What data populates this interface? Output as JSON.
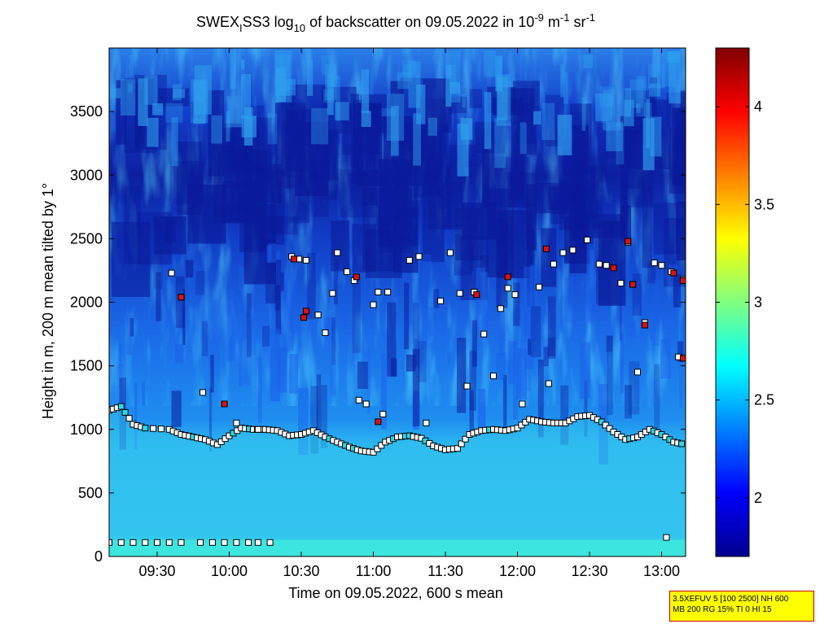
{
  "title_parts": {
    "prefix": "SWEX",
    "sub1": "I",
    "mid": "SS3 log",
    "sub2": "10",
    "mid2": " of backscatter on 09.05.2022 in 10",
    "sup1": "-9",
    "unit_m": " m",
    "sup2": "-1",
    "unit_sr": " sr",
    "sup3": "-1"
  },
  "info_box": {
    "line1": "3.5XEFUV 5 [100 2500] NH 600",
    "line2": "MB 200 RG 15% TI 0 HI 15"
  },
  "colors": {
    "bg_low": "#0a1a9a",
    "bg_mid": "#1a5fe8",
    "bg_cloud": "#2fa0ef",
    "bg_bl": "#33c3ee",
    "bg_surface": "#3fe8dd",
    "marker_white": "#ffffff",
    "marker_cyan": "#28d8e8",
    "marker_red": "#dd1111",
    "marker_edge": "#000000"
  },
  "chart_data": {
    "type": "heatmap",
    "title": "SWEXISS3 log10 of backscatter on 09.05.2022 in 10-9 m-1 sr-1",
    "xlabel": "Time on 09.05.2022, 600 s mean",
    "ylabel": "Height in m, 200 m mean tilted by 1°",
    "x_range_minutes": [
      550,
      790
    ],
    "x_ticks": [
      {
        "min": 570,
        "label": "09:30"
      },
      {
        "min": 600,
        "label": "10:00"
      },
      {
        "min": 630,
        "label": "10:30"
      },
      {
        "min": 660,
        "label": "11:00"
      },
      {
        "min": 690,
        "label": "11:30"
      },
      {
        "min": 720,
        "label": "12:00"
      },
      {
        "min": 750,
        "label": "12:30"
      },
      {
        "min": 780,
        "label": "13:00"
      }
    ],
    "ylim": [
      0,
      4000
    ],
    "y_ticks": [
      0,
      500,
      1000,
      1500,
      2000,
      2500,
      3000,
      3500
    ],
    "colorbar": {
      "range": [
        1.7,
        4.3
      ],
      "ticks": [
        "2",
        "2.5",
        "3",
        "3.5",
        "4"
      ],
      "tick_values": [
        2,
        2.5,
        3,
        3.5,
        4
      ],
      "colormap": "jet"
    },
    "bl_layer_top": [
      [
        550,
        1150
      ],
      [
        555,
        1180
      ],
      [
        560,
        1040
      ],
      [
        565,
        1010
      ],
      [
        575,
        1000
      ],
      [
        580,
        960
      ],
      [
        585,
        940
      ],
      [
        590,
        920
      ],
      [
        595,
        880
      ],
      [
        600,
        950
      ],
      [
        605,
        1010
      ],
      [
        610,
        1000
      ],
      [
        615,
        1000
      ],
      [
        620,
        990
      ],
      [
        625,
        950
      ],
      [
        630,
        960
      ],
      [
        635,
        990
      ],
      [
        640,
        940
      ],
      [
        645,
        900
      ],
      [
        650,
        860
      ],
      [
        655,
        830
      ],
      [
        660,
        820
      ],
      [
        665,
        900
      ],
      [
        670,
        940
      ],
      [
        675,
        950
      ],
      [
        680,
        930
      ],
      [
        685,
        870
      ],
      [
        690,
        840
      ],
      [
        695,
        850
      ],
      [
        700,
        960
      ],
      [
        705,
        990
      ],
      [
        710,
        1000
      ],
      [
        715,
        990
      ],
      [
        720,
        1010
      ],
      [
        725,
        1080
      ],
      [
        730,
        1060
      ],
      [
        735,
        1050
      ],
      [
        740,
        1050
      ],
      [
        745,
        1100
      ],
      [
        750,
        1110
      ],
      [
        755,
        1060
      ],
      [
        760,
        980
      ],
      [
        765,
        920
      ],
      [
        770,
        940
      ],
      [
        775,
        1000
      ],
      [
        780,
        960
      ],
      [
        785,
        900
      ],
      [
        790,
        880
      ]
    ],
    "cloud_detections": [
      [
        576,
        2230
      ],
      [
        580,
        2040
      ],
      [
        589,
        1290
      ],
      [
        598,
        1200
      ],
      [
        603,
        1050
      ],
      [
        612,
        1000
      ],
      [
        626,
        2360
      ],
      [
        629,
        2340
      ],
      [
        632,
        2330
      ],
      [
        637,
        1900
      ],
      [
        640,
        1760
      ],
      [
        643,
        2070
      ],
      [
        645,
        2390
      ],
      [
        649,
        2240
      ],
      [
        652,
        2170
      ],
      [
        654,
        1230
      ],
      [
        657,
        1200
      ],
      [
        660,
        1980
      ],
      [
        662,
        2080
      ],
      [
        664,
        1120
      ],
      [
        666,
        2080
      ],
      [
        675,
        2330
      ],
      [
        679,
        2360
      ],
      [
        682,
        1050
      ],
      [
        688,
        2010
      ],
      [
        692,
        2390
      ],
      [
        696,
        2070
      ],
      [
        699,
        1340
      ],
      [
        702,
        2080
      ],
      [
        706,
        1750
      ],
      [
        710,
        1420
      ],
      [
        713,
        1950
      ],
      [
        716,
        2110
      ],
      [
        719,
        2060
      ],
      [
        722,
        1200
      ],
      [
        729,
        2120
      ],
      [
        733,
        1360
      ],
      [
        735,
        2300
      ],
      [
        739,
        2390
      ],
      [
        743,
        2410
      ],
      [
        749,
        2490
      ],
      [
        754,
        2300
      ],
      [
        757,
        2290
      ],
      [
        763,
        2150
      ],
      [
        766,
        2470
      ],
      [
        768,
        2140
      ],
      [
        770,
        1450
      ],
      [
        773,
        1840
      ],
      [
        777,
        2310
      ],
      [
        780,
        2290
      ],
      [
        784,
        2240
      ],
      [
        787,
        1570
      ],
      [
        789,
        2180
      ],
      [
        782,
        150
      ]
    ],
    "red_detections": [
      [
        580,
        2040
      ],
      [
        598,
        1200
      ],
      [
        627,
        2340
      ],
      [
        632,
        1930
      ],
      [
        631,
        1880
      ],
      [
        653,
        2200
      ],
      [
        703,
        2060
      ],
      [
        716,
        2200
      ],
      [
        732,
        2420
      ],
      [
        760,
        2270
      ],
      [
        766,
        2480
      ],
      [
        768,
        2140
      ],
      [
        773,
        1820
      ],
      [
        785,
        2230
      ],
      [
        789,
        1560
      ],
      [
        789,
        2170
      ],
      [
        662,
        1060
      ]
    ],
    "surface_detections": [
      [
        550,
        110
      ],
      [
        555,
        110
      ],
      [
        560,
        110
      ],
      [
        565,
        110
      ],
      [
        570,
        110
      ],
      [
        575,
        110
      ],
      [
        580,
        110
      ],
      [
        588,
        110
      ],
      [
        593,
        110
      ],
      [
        598,
        110
      ],
      [
        603,
        110
      ],
      [
        608,
        110
      ],
      [
        612,
        110
      ],
      [
        617,
        110
      ]
    ]
  }
}
